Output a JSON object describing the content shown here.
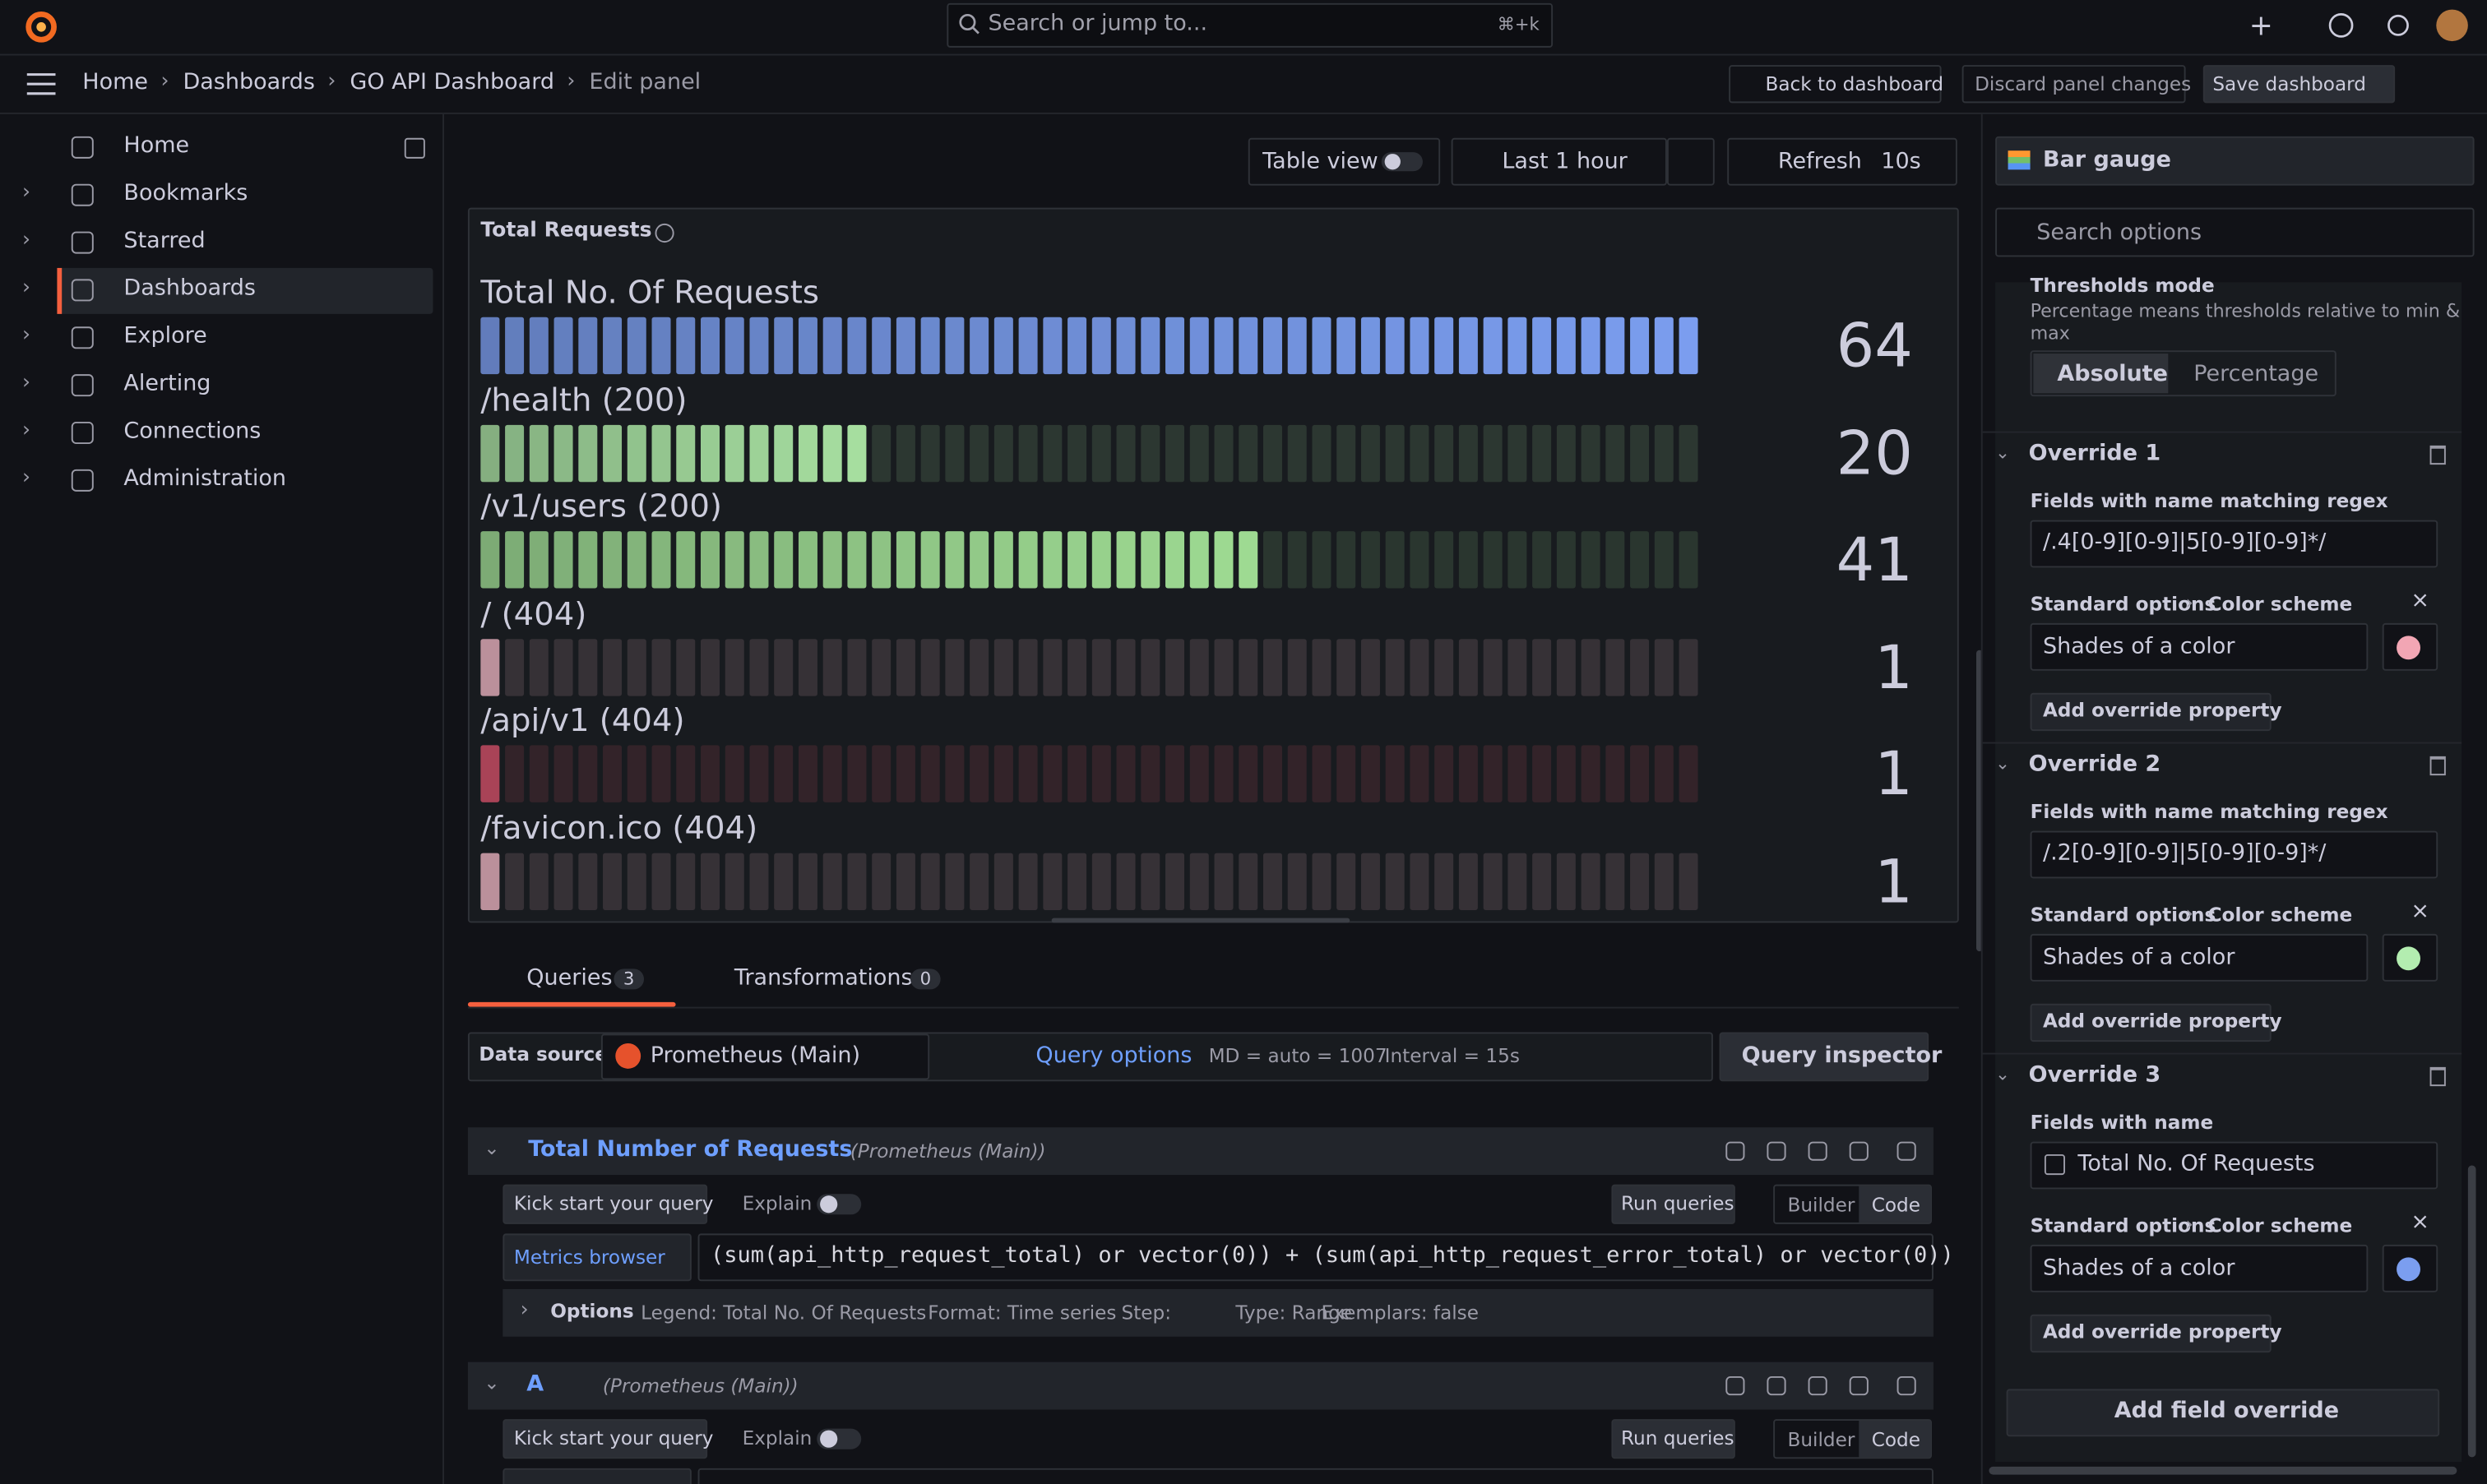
{
  "topbar": {
    "search": "Search or jump to...",
    "shortcut": "⌘+k"
  },
  "breadcrumbs": [
    "Home",
    "Dashboards",
    "GO API Dashboard",
    "Edit panel"
  ],
  "actions": {
    "back": "Back to dashboard",
    "discard": "Discard panel changes",
    "save": "Save dashboard"
  },
  "nav": [
    "Home",
    "Bookmarks",
    "Starred",
    "Dashboards",
    "Explore",
    "Alerting",
    "Connections",
    "Administration"
  ],
  "toolbar": {
    "table_view": "Table view",
    "time": "Last 1 hour",
    "refresh": "Refresh",
    "interval": "10s"
  },
  "chart_data": {
    "type": "bar-gauge",
    "title": "Total Requests",
    "categories": [
      "Total No. Of Requests",
      "/health (200)",
      "/v1/users (200)",
      "/ (404)",
      "/api/v1 (404)",
      "/favicon.ico (404)"
    ],
    "values": [
      64,
      20,
      41,
      1,
      1,
      1
    ],
    "colors": [
      "#7b9ef0",
      "#a9e2a2",
      "#9fdc93",
      "#f2b8c6",
      "#d9526b",
      "#f2b8c6"
    ],
    "xlim": [
      0,
      64
    ]
  },
  "tabs": [
    {
      "label": "Queries",
      "count": 3
    },
    {
      "label": "Transformations",
      "count": 0
    }
  ],
  "datasource": {
    "label": "Data source",
    "name": "Prometheus (Main)",
    "query_options": "Query options",
    "md": "MD = auto = 1007",
    "interval": "Interval = 15s",
    "inspector": "Query inspector"
  },
  "queries": [
    {
      "name": "Total Number of Requests",
      "source": "(Prometheus (Main))",
      "kick": "Kick start your query",
      "explain": "Explain",
      "run": "Run queries",
      "builder": "Builder",
      "code": "Code",
      "metrics": "Metrics browser",
      "expr": "(sum(api_http_request_total) or vector(0)) + (sum(api_http_request_error_total) or vector(0))",
      "options_label": "Options",
      "options": [
        "Legend: Total No. Of Requests",
        "Format: Time series",
        "Step:",
        "Type: Range",
        "Exemplars: false"
      ]
    },
    {
      "name": "A",
      "source": "(Prometheus (Main))",
      "kick": "Kick start your query",
      "explain": "Explain",
      "run": "Run queries",
      "builder": "Builder",
      "code": "Code"
    }
  ],
  "options_pane": {
    "viz": "Bar gauge",
    "search": "Search options",
    "thresholds_title": "Thresholds mode",
    "thresholds_desc": [
      "Percentage means thresholds relative to min &",
      "max"
    ],
    "modes": [
      "Absolute",
      "Percentage"
    ],
    "overrides": [
      {
        "title": "Override 1",
        "matcher": "Fields with name matching regex",
        "value": "/.4[0-9][0-9]|5[0-9][0-9]*/",
        "prop_path": [
          "Standard options",
          "Color scheme"
        ],
        "prop_value": "Shades of a color",
        "color": "#f2a6b4",
        "add": "Add override property"
      },
      {
        "title": "Override 2",
        "matcher": "Fields with name matching regex",
        "value": "/.2[0-9][0-9]|5[0-9][0-9]*/",
        "prop_path": [
          "Standard options",
          "Color scheme"
        ],
        "prop_value": "Shades of a color",
        "color": "#b3edb0",
        "add": "Add override property"
      },
      {
        "title": "Override 3",
        "matcher": "Fields with name",
        "value": "Total No. Of Requests",
        "prop_path": [
          "Standard options",
          "Color scheme"
        ],
        "prop_value": "Shades of a color",
        "color": "#7b9ef0",
        "add": "Add override property"
      }
    ],
    "add_field": "Add field override"
  }
}
